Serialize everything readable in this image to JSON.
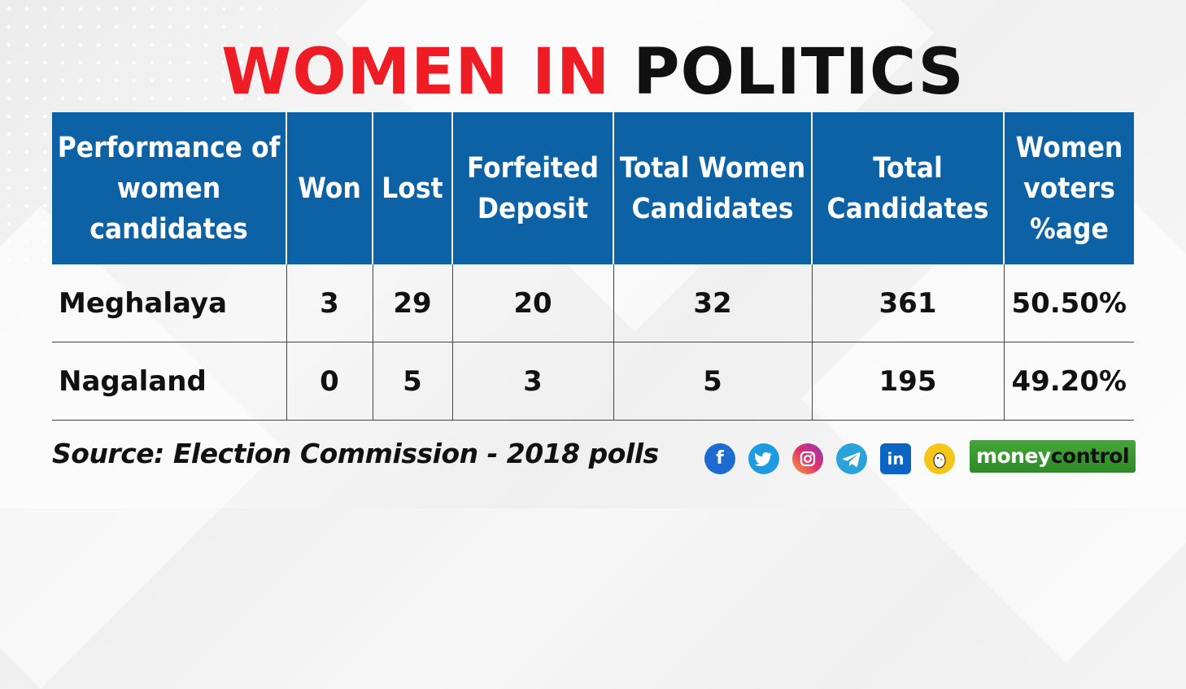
{
  "title": {
    "part1": "WOMEN IN",
    "part2": "POLITICS"
  },
  "table": {
    "headers": [
      "Performance of women candidates",
      "Won",
      "Lost",
      "Forfeited Deposit",
      "Total Women Candidates",
      "Total Candidates",
      "Women voters %age"
    ],
    "rows": [
      [
        "Meghalaya",
        "3",
        "29",
        "20",
        "32",
        "361",
        "50.50%"
      ],
      [
        "Nagaland",
        "0",
        "5",
        "3",
        "5",
        "195",
        "49.20%"
      ]
    ]
  },
  "source": "Source: Election Commission - 2018 polls",
  "social_icons": [
    "facebook-icon",
    "twitter-icon",
    "instagram-icon",
    "telegram-icon",
    "linkedin-icon",
    "koo-icon"
  ],
  "brand": {
    "part1": "money",
    "part2": "control"
  },
  "colors": {
    "header_bg": "#0d62a6",
    "title_red": "#ee1c25",
    "brand_green": "#3a9a2f"
  }
}
